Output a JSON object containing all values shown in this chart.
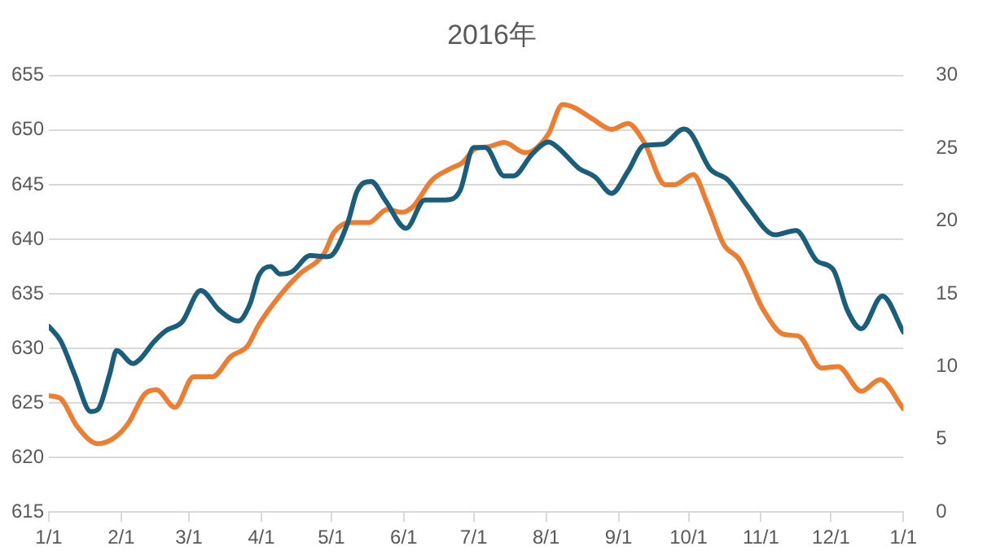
{
  "chart_data": {
    "type": "line",
    "title": "2016年",
    "grid": "y",
    "xlim": [
      "2016-01-01",
      "2017-01-01"
    ],
    "xticks": [
      {
        "value": "2016-01-01",
        "label": "1/1"
      },
      {
        "value": "2016-02-01",
        "label": "2/1"
      },
      {
        "value": "2016-03-01",
        "label": "3/1"
      },
      {
        "value": "2016-04-01",
        "label": "4/1"
      },
      {
        "value": "2016-05-01",
        "label": "5/1"
      },
      {
        "value": "2016-06-01",
        "label": "6/1"
      },
      {
        "value": "2016-07-01",
        "label": "7/1"
      },
      {
        "value": "2016-08-01",
        "label": "8/1"
      },
      {
        "value": "2016-09-01",
        "label": "9/1"
      },
      {
        "value": "2016-10-01",
        "label": "10/1"
      },
      {
        "value": "2016-11-01",
        "label": "11/1"
      },
      {
        "value": "2016-12-01",
        "label": "12/1"
      },
      {
        "value": "2017-01-01",
        "label": "1/1"
      }
    ],
    "ylim": [
      615,
      655
    ],
    "yticks": [
      615,
      620,
      625,
      630,
      635,
      640,
      645,
      650,
      655
    ],
    "y2lim": [
      0,
      30
    ],
    "y2ticks": [
      0,
      5,
      10,
      15,
      20,
      25,
      30
    ],
    "series": [
      {
        "color": "#1b5e7b",
        "axis": "y",
        "x": [
          "2016-01-01",
          "2016-01-06",
          "2016-01-12",
          "2016-01-19",
          "2016-01-22",
          "2016-01-27",
          "2016-01-30",
          "2016-02-06",
          "2016-02-09",
          "2016-02-15",
          "2016-02-20",
          "2016-02-27",
          "2016-03-06",
          "2016-03-14",
          "2016-03-22",
          "2016-03-27",
          "2016-03-31",
          "2016-04-05",
          "2016-04-09",
          "2016-04-14",
          "2016-04-22",
          "2016-04-29",
          "2016-05-01",
          "2016-05-08",
          "2016-05-12",
          "2016-05-18",
          "2016-05-24",
          "2016-06-02",
          "2016-06-10",
          "2016-06-19",
          "2016-06-25",
          "2016-07-01",
          "2016-07-06",
          "2016-07-14",
          "2016-07-18",
          "2016-07-26",
          "2016-08-02",
          "2016-08-06",
          "2016-08-15",
          "2016-08-22",
          "2016-08-29",
          "2016-09-05",
          "2016-09-12",
          "2016-09-20",
          "2016-09-29",
          "2016-10-02",
          "2016-10-10",
          "2016-10-18",
          "2016-10-26",
          "2016-11-07",
          "2016-11-16",
          "2016-11-25",
          "2016-12-02",
          "2016-12-08",
          "2016-12-14",
          "2016-12-23",
          "2017-01-01"
        ],
        "values": [
          632.0,
          630.7,
          627.6,
          624.2,
          624.4,
          627.6,
          629.8,
          628.6,
          629.0,
          630.6,
          631.6,
          632.4,
          635.3,
          633.5,
          632.5,
          634.0,
          636.7,
          637.5,
          636.8,
          637.0,
          638.5,
          638.4,
          638.5,
          641.5,
          644.4,
          645.3,
          643.6,
          641.0,
          643.6,
          643.6,
          644.4,
          648.4,
          648.4,
          645.8,
          645.8,
          647.8,
          648.9,
          648.4,
          646.5,
          645.7,
          644.2,
          646.2,
          648.6,
          648.7,
          650.1,
          649.7,
          646.5,
          645.4,
          643.1,
          640.4,
          640.8,
          638.0,
          637.2,
          633.5,
          631.8,
          634.8,
          631.5
        ]
      },
      {
        "color": "#ed7d31",
        "axis": "y2",
        "x": [
          "2016-01-01",
          "2016-01-06",
          "2016-01-13",
          "2016-01-22",
          "2016-01-29",
          "2016-02-04",
          "2016-02-11",
          "2016-02-16",
          "2016-02-24",
          "2016-03-03",
          "2016-03-11",
          "2016-03-19",
          "2016-03-26",
          "2016-03-31",
          "2016-04-09",
          "2016-04-17",
          "2016-04-28",
          "2016-05-02",
          "2016-05-09",
          "2016-05-17",
          "2016-05-25",
          "2016-05-31",
          "2016-06-05",
          "2016-06-13",
          "2016-06-21",
          "2016-06-26",
          "2016-07-02",
          "2016-07-07",
          "2016-07-14",
          "2016-07-23",
          "2016-07-26",
          "2016-08-02",
          "2016-08-08",
          "2016-08-13",
          "2016-08-21",
          "2016-08-29",
          "2016-09-05",
          "2016-09-12",
          "2016-09-21",
          "2016-09-25",
          "2016-10-03",
          "2016-10-09",
          "2016-10-16",
          "2016-10-23",
          "2016-11-02",
          "2016-11-11",
          "2016-11-17",
          "2016-11-27",
          "2016-12-04",
          "2016-12-14",
          "2016-12-22",
          "2017-01-01"
        ],
        "values": [
          8.0,
          7.8,
          5.9,
          4.7,
          5.1,
          6.1,
          8.1,
          8.4,
          7.2,
          9.3,
          9.3,
          10.7,
          11.4,
          12.9,
          14.9,
          16.3,
          17.8,
          19.2,
          19.9,
          19.9,
          20.8,
          20.6,
          21.0,
          22.8,
          23.6,
          24.0,
          25.0,
          25.1,
          25.4,
          24.7,
          24.8,
          26.0,
          28.0,
          27.8,
          27.0,
          26.3,
          26.7,
          25.4,
          22.5,
          22.5,
          23.2,
          21.2,
          18.4,
          17.3,
          13.9,
          12.2,
          12.1,
          9.9,
          10.0,
          8.3,
          9.1,
          7.1
        ]
      }
    ]
  }
}
